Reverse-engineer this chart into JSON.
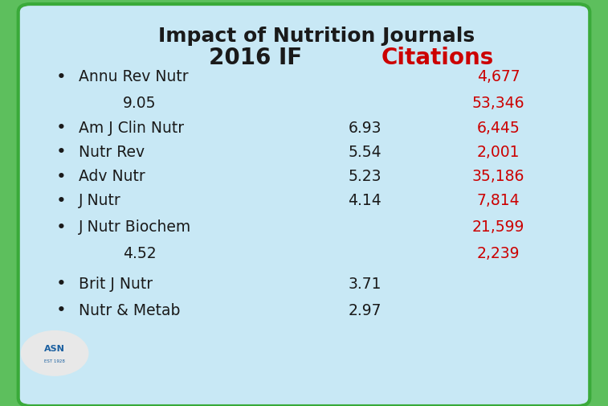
{
  "title_line1": "Impact of Nutrition Journals",
  "title_line2": "2016 IF",
  "title_line2_red": "Citations",
  "title_color": "#1a1a1a",
  "title_red_color": "#cc0000",
  "bg_outer": "#5dbf5d",
  "bg_inner": "#c8e8f5",
  "border_color": "#3aaa3a",
  "rows": [
    {
      "journal": "Annu Rev Nutr",
      "if_val": "9.05",
      "if_indent": true,
      "citations": "4,677",
      "cit2": "53,346"
    },
    {
      "journal": "Am J Clin Nutr",
      "if_val": "6.93",
      "if_indent": false,
      "citations": "6,445",
      "cit2": null
    },
    {
      "journal": "Nutr Rev",
      "if_val": "5.54",
      "if_indent": false,
      "citations": "2,001",
      "cit2": null
    },
    {
      "journal": "Adv Nutr",
      "if_val": "5.23",
      "if_indent": false,
      "citations": "35,186",
      "cit2": null
    },
    {
      "journal": "J Nutr",
      "if_val": "4.14",
      "if_indent": false,
      "citations": "7,814",
      "cit2": null
    },
    {
      "journal": "J Nutr Biochem",
      "if_val": "4.52",
      "if_indent": true,
      "citations": "21,599",
      "cit2": "2,239"
    },
    {
      "journal": "Brit J Nutr",
      "if_val": "3.71",
      "if_indent": false,
      "citations": null,
      "cit2": null
    },
    {
      "journal": "Nutr & Metab",
      "if_val": "2.97",
      "if_indent": false,
      "citations": null,
      "cit2": null
    }
  ],
  "text_color_black": "#1a1a1a",
  "text_color_red": "#cc0000",
  "bullet": "•"
}
